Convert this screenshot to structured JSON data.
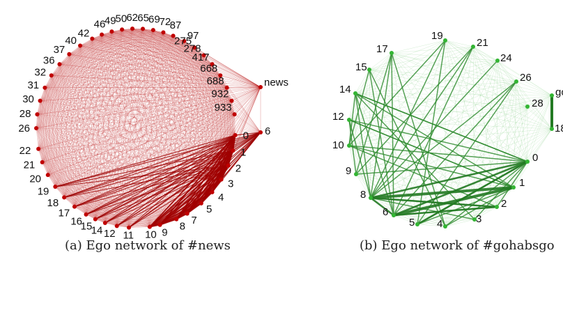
{
  "figure": {
    "panels": [
      {
        "caption": "(a) Ego network of #news",
        "hub_label": "news",
        "color": "#c00000",
        "edge_color": "#b81414",
        "nodes": [
          "0",
          "1",
          "2",
          "3",
          "4",
          "5",
          "6",
          "7",
          "8",
          "9",
          "10",
          "11",
          "12",
          "14",
          "15",
          "16",
          "17",
          "18",
          "19",
          "20",
          "21",
          "22",
          "26",
          "28",
          "30",
          "31",
          "32",
          "36",
          "37",
          "40",
          "42",
          "46",
          "49",
          "50",
          "62",
          "65",
          "69",
          "72",
          "87",
          "97",
          "275",
          "278",
          "417",
          "668",
          "688",
          "932",
          "933"
        ]
      },
      {
        "caption": "(b) Ego network of #gohabsgo",
        "hub_label": "go",
        "color": "#33b533",
        "edge_color": "#2e8b2e",
        "nodes": [
          "0",
          "1",
          "2",
          "3",
          "4",
          "5",
          "6",
          "8",
          "9",
          "10",
          "12",
          "14",
          "15",
          "17",
          "19",
          "21",
          "24",
          "26",
          "28",
          "18"
        ]
      }
    ]
  }
}
